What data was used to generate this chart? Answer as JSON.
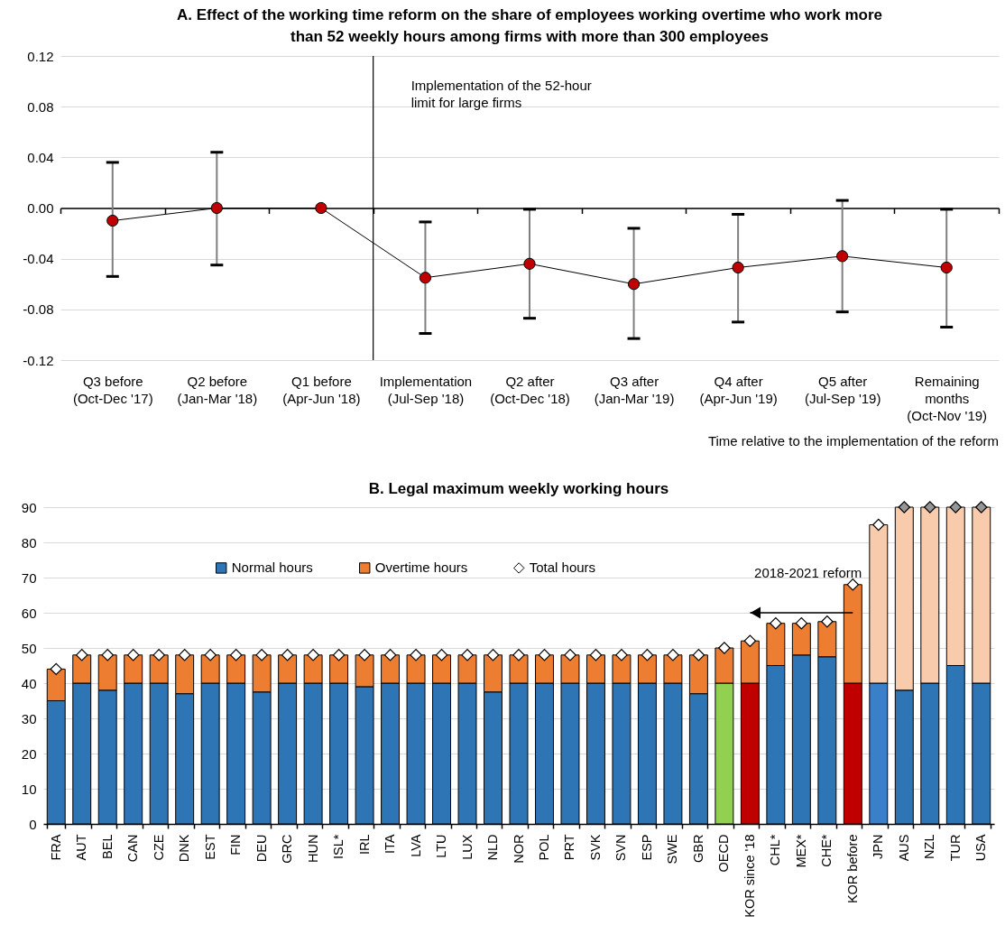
{
  "chart_data": [
    {
      "type": "line",
      "title": "A. Effect of the working time reform on the share of employees working overtime who work more than 52 weekly hours among firms with more than 300 employees",
      "xlabel": "Time relative to the implementation of the reform",
      "categories": [
        "Q3 before (Oct-Dec '17)",
        "Q2 before (Jan-Mar '18)",
        "Q1 before (Apr-Jun '18)",
        "Implementation (Jul-Sep '18)",
        "Q2 after (Oct-Dec '18)",
        "Q3 after (Jan-Mar '19)",
        "Q4 after (Apr-Jun '19)",
        "Q5 after (Jul-Sep '19)",
        "Remaining months (Oct-Nov '19)"
      ],
      "series": [
        {
          "color": "#c00000",
          "values": [
            -0.01,
            0,
            0,
            -0.055,
            -0.044,
            -0.06,
            -0.047,
            -0.038,
            -0.047
          ],
          "errors": [
            [
              -0.054,
              0.036
            ],
            [
              -0.045,
              0.044
            ],
            null,
            [
              -0.099,
              -0.011
            ],
            [
              -0.087,
              -0.001
            ],
            [
              -0.103,
              -0.016
            ],
            [
              -0.09,
              -0.005
            ],
            [
              -0.082,
              0.006
            ],
            [
              -0.094,
              -0.001
            ]
          ]
        }
      ],
      "ylim": [
        -0.12,
        0.12
      ],
      "yticks": [
        -0.12,
        -0.08,
        -0.04,
        {
          "value": 0,
          "label": "0.00"
        },
        0.04,
        0.08,
        0.12
      ],
      "grid": "y",
      "marker": "circle",
      "line_style": "solid",
      "ref_lines": [
        {
          "axis": "x",
          "value": "Implementation (Jul-Sep '18)",
          "label": "Implementation of the 52-hour limit for large firms"
        }
      ]
    },
    {
      "type": "bar",
      "title": "B. Legal maximum weekly working hours",
      "stacked": true,
      "categories": [
        "FRA",
        "AUT",
        "BEL",
        "CAN",
        "CZE",
        "DNK",
        "EST",
        "FIN",
        "DEU",
        "GRC",
        "HUN",
        "ISL*",
        "IRL",
        "ITA",
        "LVA",
        "LTU",
        "LUX",
        "NLD",
        "NOR",
        "POL",
        "PRT",
        "SVK",
        "SVN",
        "ESP",
        "SWE",
        "GBR",
        "OECD",
        "KOR since '18",
        "CHL*",
        "MEX*",
        "CHE*",
        "KOR before",
        "JPN",
        "AUS",
        "NZL",
        "TUR",
        "USA"
      ],
      "series": [
        {
          "name": "Normal hours",
          "color": "#2e75b6",
          "colors": [
            "#2e75b6",
            "#2e75b6",
            "#2e75b6",
            "#2e75b6",
            "#2e75b6",
            "#2e75b6",
            "#2e75b6",
            "#2e75b6",
            "#2e75b6",
            "#2e75b6",
            "#2e75b6",
            "#2e75b6",
            "#2e75b6",
            "#2e75b6",
            "#2e75b6",
            "#2e75b6",
            "#2e75b6",
            "#2e75b6",
            "#2e75b6",
            "#2e75b6",
            "#2e75b6",
            "#2e75b6",
            "#2e75b6",
            "#2e75b6",
            "#2e75b6",
            "#2e75b6",
            "#92d050",
            "#c00000",
            "#2e75b6",
            "#2e75b6",
            "#2e75b6",
            "#c00000",
            "#3a80c8",
            "#2e75b6",
            "#2e75b6",
            "#2e75b6",
            "#2e75b6"
          ],
          "values": [
            35,
            40,
            38,
            40,
            40,
            37,
            40,
            40,
            37.5,
            40,
            40,
            40,
            39,
            40,
            40,
            40,
            40,
            37.5,
            40,
            40,
            40,
            40,
            40,
            40,
            40,
            37,
            40,
            40,
            45,
            48,
            47.5,
            40,
            40,
            38,
            40,
            45,
            40
          ]
        },
        {
          "name": "Overtime hours",
          "color": "#ed7d31",
          "colors": [
            "#ed7d31",
            "#ed7d31",
            "#ed7d31",
            "#ed7d31",
            "#ed7d31",
            "#ed7d31",
            "#ed7d31",
            "#ed7d31",
            "#ed7d31",
            "#ed7d31",
            "#ed7d31",
            "#ed7d31",
            "#ed7d31",
            "#ed7d31",
            "#ed7d31",
            "#ed7d31",
            "#ed7d31",
            "#ed7d31",
            "#ed7d31",
            "#ed7d31",
            "#ed7d31",
            "#ed7d31",
            "#ed7d31",
            "#ed7d31",
            "#ed7d31",
            "#ed7d31",
            "#ed7d31",
            "#ed7d31",
            "#ed7d31",
            "#ed7d31",
            "#ed7d31",
            "#ed7d31",
            "#f8cbad",
            "#f8cbad",
            "#f8cbad",
            "#f8cbad",
            "#f8cbad"
          ],
          "values": [
            9,
            8,
            10,
            8,
            8,
            11,
            8,
            8,
            10.5,
            8,
            8,
            8,
            9,
            8,
            8,
            8,
            8,
            10.5,
            8,
            8,
            8,
            8,
            8,
            8,
            8,
            11,
            10,
            12,
            12,
            9,
            10,
            28,
            45,
            52,
            50,
            45,
            50
          ]
        },
        {
          "name": "Total hours",
          "type": "scatter",
          "color": "#ffffff",
          "colors": [
            "#ffffff",
            "#ffffff",
            "#ffffff",
            "#ffffff",
            "#ffffff",
            "#ffffff",
            "#ffffff",
            "#ffffff",
            "#ffffff",
            "#ffffff",
            "#ffffff",
            "#ffffff",
            "#ffffff",
            "#ffffff",
            "#ffffff",
            "#ffffff",
            "#ffffff",
            "#ffffff",
            "#ffffff",
            "#ffffff",
            "#ffffff",
            "#ffffff",
            "#ffffff",
            "#ffffff",
            "#ffffff",
            "#ffffff",
            "#ffffff",
            "#ffffff",
            "#ffffff",
            "#ffffff",
            "#ffffff",
            "#ffffff",
            "#ffffff",
            "#969696",
            "#969696",
            "#969696",
            "#969696"
          ],
          "values": [
            44,
            48,
            48,
            48,
            48,
            48,
            48,
            48,
            48,
            48,
            48,
            48,
            48,
            48,
            48,
            48,
            48,
            48,
            48,
            48,
            48,
            48,
            48,
            48,
            48,
            48,
            50,
            52,
            57,
            57,
            57.5,
            68,
            85,
            90,
            90,
            90,
            90
          ]
        }
      ],
      "ylim": [
        0,
        90
      ],
      "yticks": [
        0,
        10,
        20,
        30,
        40,
        50,
        60,
        70,
        80,
        90
      ],
      "grid": "y",
      "legend": "top",
      "marker": "diamond",
      "annotations": [
        "2018-2021 reform"
      ]
    }
  ]
}
